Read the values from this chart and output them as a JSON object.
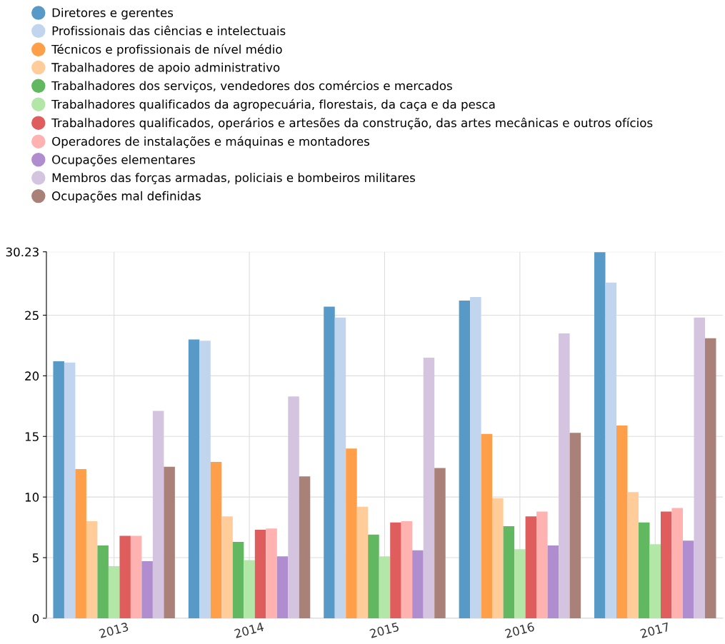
{
  "chart_data": {
    "type": "bar",
    "categories": [
      "2013",
      "2014",
      "2015",
      "2016",
      "2017"
    ],
    "series": [
      {
        "name": "Diretores e gerentes",
        "color": "#5799c7",
        "values": [
          21.2,
          23.0,
          25.7,
          26.2,
          30.2
        ]
      },
      {
        "name": "Profissionais das ciências e intelectuais",
        "color": "#c2d5ee",
        "values": [
          21.1,
          22.9,
          24.8,
          26.5,
          27.7
        ]
      },
      {
        "name": "Técnicos e profissionais de nível médio",
        "color": "#ff9f4a",
        "values": [
          12.3,
          12.9,
          14.0,
          15.2,
          15.9
        ]
      },
      {
        "name": "Trabalhadores de apoio administrativo",
        "color": "#ffcc9a",
        "values": [
          8.0,
          8.4,
          9.2,
          9.9,
          10.4
        ]
      },
      {
        "name": "Trabalhadores dos serviços, vendedores dos comércios e mercados",
        "color": "#61b861",
        "values": [
          6.0,
          6.3,
          6.9,
          7.6,
          7.9
        ]
      },
      {
        "name": "Trabalhadores qualificados da agropecuária, florestais, da caça e da pesca",
        "color": "#b2e7a7",
        "values": [
          4.3,
          4.8,
          5.1,
          5.7,
          6.1
        ]
      },
      {
        "name": "Trabalhadores qualificados, operários e artesões da construção, das artes mecânicas e outros ofícios",
        "color": "#e05d5e",
        "values": [
          6.8,
          7.3,
          7.9,
          8.4,
          8.8
        ]
      },
      {
        "name": "Operadores de instalações e máquinas e montadores",
        "color": "#ffb2b0",
        "values": [
          6.8,
          7.4,
          8.0,
          8.8,
          9.1
        ]
      },
      {
        "name": "Ocupações elementares",
        "color": "#af8dce",
        "values": [
          4.7,
          5.1,
          5.6,
          6.0,
          6.4
        ]
      },
      {
        "name": "Membros das forças armadas, policiais e bombeiros militares",
        "color": "#d4c4e0",
        "values": [
          17.1,
          18.3,
          21.5,
          23.5,
          24.8
        ]
      },
      {
        "name": "Ocupações mal definidas",
        "color": "#a98178",
        "values": [
          12.5,
          11.7,
          12.4,
          15.3,
          23.1
        ]
      }
    ],
    "ylim": [
      0,
      30.23
    ],
    "yticks": [
      0,
      5,
      10,
      15,
      20,
      25,
      30.23
    ],
    "grid": true,
    "legend": "top",
    "marker": "circle"
  }
}
